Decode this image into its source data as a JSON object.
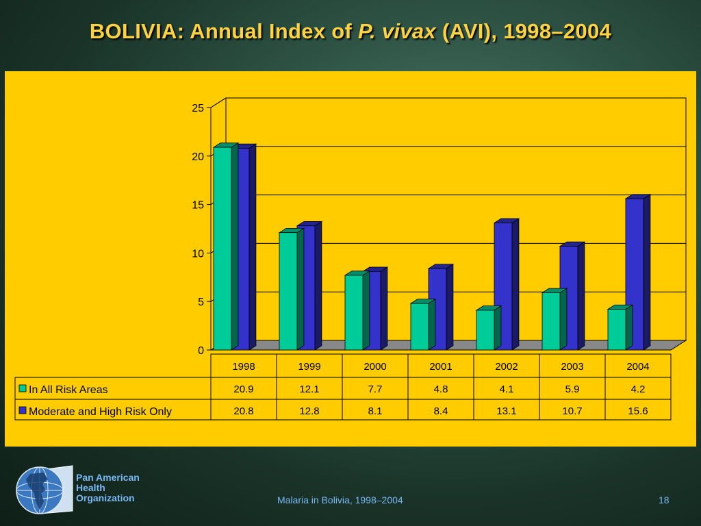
{
  "slide": {
    "title_prefix": "BOLIVIA: Annual Index of ",
    "title_italic": "P. vivax",
    "title_suffix": " (AVI), 1998–2004",
    "footer_text": "Malaria in Bolivia, 1998–2004",
    "page_number": "18"
  },
  "org": {
    "line1": "Pan American",
    "line2": "Health",
    "line3": "Organization"
  },
  "colors": {
    "background": "#ffcc00",
    "series_all": "#00cc99",
    "series_mod": "#3333cc",
    "title": "#ffd23f",
    "footer": "#79b8f4"
  },
  "chart_data": {
    "type": "bar",
    "categories": [
      "1998",
      "1999",
      "2000",
      "2001",
      "2002",
      "2003",
      "2004"
    ],
    "series": [
      {
        "name": "In All Risk Areas",
        "values": [
          20.9,
          12.1,
          7.7,
          4.8,
          4.1,
          5.9,
          4.2
        ]
      },
      {
        "name": "Moderate and High Risk Only",
        "values": [
          20.8,
          12.8,
          8.1,
          8.4,
          13.1,
          10.7,
          15.6
        ]
      }
    ],
    "yticks": [
      "0",
      "5",
      "10",
      "15",
      "20",
      "25"
    ],
    "ylim": [
      0,
      25
    ],
    "grid": true,
    "legend": "data-table",
    "table": {
      "rows": [
        [
          "20.9",
          "12.1",
          "7.7",
          "4.8",
          "4.1",
          "5.9",
          "4.2"
        ],
        [
          "20.8",
          "12.8",
          "8.1",
          "8.4",
          "13.1",
          "10.7",
          "15.6"
        ]
      ]
    }
  }
}
